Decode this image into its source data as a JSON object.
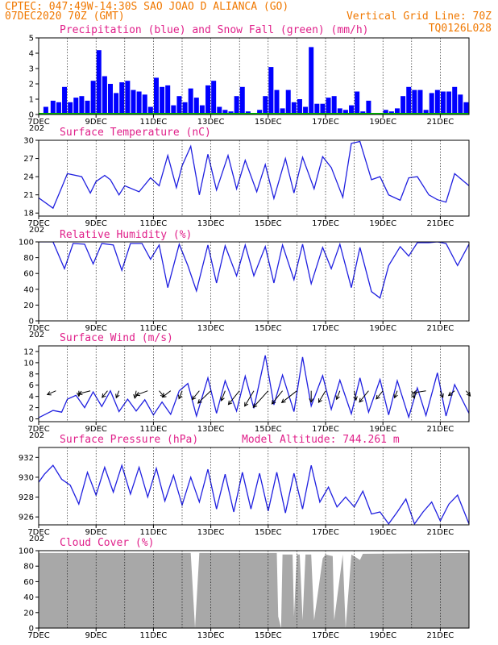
{
  "header": {
    "line1": "CPTEC:   047:49W-14:30S  SAO JOAO D ALIANCA (GO)",
    "line2_left": "07DEC2020 70Z (GMT)",
    "line2_right": "Vertical Grid Line: 70Z",
    "code": "TQ0126L028"
  },
  "x_ticks": [
    "7DEC",
    "9DEC",
    "11DEC",
    "13DEC",
    "15DEC",
    "17DEC",
    "19DEC",
    "21DEC"
  ],
  "year_fragment": "202",
  "colors": {
    "header": "#f07800",
    "panel_title": "#e0208a",
    "precip": "#0000ff",
    "snow": "#00c000",
    "line": "#2020e0",
    "cloud": "#a8a8a8"
  },
  "chart_data": [
    {
      "type": "bar",
      "title": "Precipitation (blue) and Snow Fall (green) (mm/h)",
      "ylim": [
        0,
        5
      ],
      "yticks": [
        "0",
        "1",
        "2",
        "3",
        "4",
        "5"
      ],
      "x_start_day": 7,
      "x_end_day": 22,
      "series": [
        {
          "name": "Precipitation",
          "color": "#0000ff",
          "x": [
            7.25,
            7.5,
            7.7,
            7.9,
            8.1,
            8.3,
            8.5,
            8.7,
            8.9,
            9.1,
            9.3,
            9.5,
            9.7,
            9.9,
            10.1,
            10.3,
            10.5,
            10.7,
            10.9,
            11.1,
            11.3,
            11.5,
            11.7,
            11.9,
            12.1,
            12.3,
            12.5,
            12.7,
            12.9,
            13.1,
            13.3,
            13.5,
            13.7,
            13.9,
            14.1,
            14.3,
            14.5,
            14.7,
            14.9,
            15.1,
            15.3,
            15.5,
            15.7,
            15.9,
            16.1,
            16.3,
            16.5,
            16.7,
            16.9,
            17.1,
            17.3,
            17.5,
            17.7,
            17.9,
            18.1,
            18.3,
            18.5,
            19.1,
            19.3,
            19.5,
            19.7,
            19.9,
            20.1,
            20.3,
            20.5,
            20.7,
            20.9,
            21.1,
            21.3,
            21.5,
            21.7,
            21.9
          ],
          "values": [
            0.5,
            0.9,
            0.8,
            1.8,
            0.8,
            1.1,
            1.2,
            0.9,
            2.2,
            4.2,
            2.5,
            2.0,
            1.4,
            2.1,
            2.2,
            1.6,
            1.5,
            1.3,
            0.5,
            2.4,
            1.8,
            1.9,
            0.6,
            1.2,
            0.8,
            1.7,
            1.1,
            0.6,
            1.9,
            2.2,
            0.5,
            0.3,
            0.2,
            1.2,
            1.8,
            0.2,
            0.1,
            0.3,
            1.2,
            3.1,
            1.6,
            0.4,
            1.6,
            0.8,
            1.0,
            0.5,
            4.4,
            0.7,
            0.7,
            1.1,
            1.2,
            0.4,
            0.3,
            0.6,
            1.5,
            0.2,
            0.9,
            0.3,
            0.2,
            0.4,
            1.2,
            1.8,
            1.6,
            1.6,
            0.3,
            1.4,
            1.6,
            1.5,
            1.5,
            1.8,
            1.3,
            0.8
          ]
        },
        {
          "name": "Snow Fall",
          "color": "#00c000",
          "values": [
            0
          ]
        }
      ]
    },
    {
      "type": "line",
      "title": "Surface Temperature (nC)",
      "ylim": [
        17.5,
        30
      ],
      "yticks": [
        "18",
        "21",
        "24",
        "27",
        "30"
      ],
      "x": [
        7.0,
        7.5,
        7.8,
        8.0,
        8.5,
        8.8,
        9.0,
        9.3,
        9.5,
        9.8,
        10.0,
        10.5,
        10.9,
        11.2,
        11.5,
        11.8,
        12.0,
        12.3,
        12.6,
        12.9,
        13.2,
        13.6,
        13.9,
        14.2,
        14.6,
        14.9,
        15.2,
        15.6,
        15.9,
        16.2,
        16.6,
        16.9,
        17.2,
        17.6,
        17.9,
        18.2,
        18.6,
        18.9,
        19.2,
        19.6,
        19.9,
        20.2,
        20.6,
        20.9,
        21.2,
        21.5,
        21.8,
        22.0
      ],
      "values": [
        20.5,
        18.8,
        22.2,
        24.5,
        24.0,
        21.3,
        23.2,
        24.2,
        23.5,
        21.0,
        22.5,
        21.5,
        23.8,
        22.5,
        27.5,
        22.2,
        25.8,
        29.0,
        21.0,
        27.7,
        21.8,
        27.5,
        22.0,
        26.7,
        21.5,
        26.0,
        20.4,
        27.0,
        21.3,
        27.2,
        22.0,
        27.3,
        25.5,
        20.6,
        29.5,
        29.8,
        23.5,
        24.0,
        21.0,
        20.1,
        23.8,
        24.0,
        21.0,
        20.2,
        19.8,
        24.5,
        23.3,
        22.5
      ]
    },
    {
      "type": "line",
      "title": "Relative Humidity (%)",
      "ylim": [
        0,
        100
      ],
      "yticks": [
        "0",
        "20",
        "40",
        "60",
        "80",
        "100"
      ],
      "x": [
        7.0,
        7.5,
        7.9,
        8.2,
        8.6,
        8.9,
        9.2,
        9.6,
        9.9,
        10.2,
        10.6,
        10.9,
        11.2,
        11.5,
        11.9,
        12.2,
        12.5,
        12.9,
        13.2,
        13.5,
        13.9,
        14.2,
        14.5,
        14.9,
        15.2,
        15.5,
        15.9,
        16.2,
        16.5,
        16.9,
        17.2,
        17.5,
        17.9,
        18.2,
        18.6,
        18.9,
        19.2,
        19.6,
        19.9,
        20.2,
        20.6,
        20.9,
        21.2,
        21.6,
        22.0
      ],
      "values": [
        100,
        100,
        66,
        98,
        97,
        72,
        98,
        96,
        64,
        98,
        98,
        78,
        96,
        42,
        97,
        70,
        38,
        96,
        48,
        95,
        57,
        96,
        57,
        94,
        48,
        96,
        52,
        97,
        47,
        93,
        66,
        97,
        42,
        93,
        37,
        29,
        70,
        94,
        82,
        99,
        99,
        100,
        98,
        70,
        97
      ]
    },
    {
      "type": "line",
      "title": "Surface Wind (m/s)",
      "ylim": [
        -0.5,
        13
      ],
      "yticks": [
        "0",
        "2",
        "4",
        "6",
        "8",
        "10",
        "12"
      ],
      "x": [
        7.0,
        7.5,
        7.8,
        8.0,
        8.3,
        8.6,
        8.9,
        9.2,
        9.5,
        9.8,
        10.1,
        10.4,
        10.7,
        11.0,
        11.3,
        11.6,
        11.9,
        12.2,
        12.5,
        12.9,
        13.2,
        13.5,
        13.9,
        14.2,
        14.5,
        14.9,
        15.2,
        15.5,
        15.9,
        16.2,
        16.5,
        16.9,
        17.2,
        17.5,
        17.9,
        18.2,
        18.5,
        18.9,
        19.2,
        19.5,
        19.9,
        20.2,
        20.5,
        20.9,
        21.2,
        21.5,
        22.0
      ],
      "values": [
        0.2,
        1.5,
        1.2,
        3.5,
        4.2,
        2.0,
        4.8,
        2.2,
        5.0,
        1.3,
        3.5,
        1.4,
        3.4,
        0.7,
        3.0,
        0.8,
        5.0,
        6.3,
        0.5,
        7.3,
        1.0,
        6.8,
        1.4,
        7.6,
        1.9,
        11.3,
        2.5,
        7.8,
        1.3,
        11.0,
        2.3,
        7.7,
        1.7,
        6.9,
        0.9,
        7.3,
        1.2,
        7.0,
        0.7,
        6.8,
        0.3,
        5.5,
        0.6,
        8.2,
        0.5,
        6.1,
        1.0
      ],
      "arrows": [
        {
          "x": 7.6,
          "speed": 1,
          "dir": 45
        },
        {
          "x": 8.4,
          "speed": 1,
          "dir": 90
        },
        {
          "x": 8.8,
          "speed": 1.2,
          "dir": 30
        },
        {
          "x": 9.4,
          "speed": 1.5,
          "dir": 70
        },
        {
          "x": 9.8,
          "speed": 1.5,
          "dir": 80
        },
        {
          "x": 10.4,
          "speed": 1.6,
          "dir": 85
        },
        {
          "x": 10.8,
          "speed": 1.4,
          "dir": 40
        },
        {
          "x": 11.2,
          "speed": 1.3,
          "dir": 110
        },
        {
          "x": 11.6,
          "speed": 1.6,
          "dir": 60
        },
        {
          "x": 12.0,
          "speed": 1.8,
          "dir": 80
        },
        {
          "x": 12.6,
          "speed": 2.2,
          "dir": 70
        },
        {
          "x": 13.0,
          "speed": 3.5,
          "dir": 65
        },
        {
          "x": 13.5,
          "speed": 2.4,
          "dir": 80
        },
        {
          "x": 14.0,
          "speed": 3.8,
          "dir": 70
        },
        {
          "x": 14.5,
          "speed": 4.2,
          "dir": 75
        },
        {
          "x": 15.0,
          "speed": 4.8,
          "dir": 68
        },
        {
          "x": 15.5,
          "speed": 3.6,
          "dir": 70
        },
        {
          "x": 16.0,
          "speed": 3.5,
          "dir": 60
        },
        {
          "x": 16.5,
          "speed": 2.8,
          "dir": 90
        },
        {
          "x": 17.0,
          "speed": 3.0,
          "dir": 75
        },
        {
          "x": 17.5,
          "speed": 2.0,
          "dir": 80
        },
        {
          "x": 18.0,
          "speed": 2.2,
          "dir": 95
        },
        {
          "x": 18.5,
          "speed": 3.0,
          "dir": 70
        },
        {
          "x": 19.0,
          "speed": 2.0,
          "dir": 70
        },
        {
          "x": 19.5,
          "speed": 1.5,
          "dir": 80
        },
        {
          "x": 20.0,
          "speed": 1.6,
          "dir": 100
        },
        {
          "x": 20.5,
          "speed": 1.2,
          "dir": 20
        },
        {
          "x": 21.0,
          "speed": 1.4,
          "dir": 100
        },
        {
          "x": 21.5,
          "speed": 1.0,
          "dir": 60
        },
        {
          "x": 21.9,
          "speed": 1.0,
          "dir": 110
        }
      ]
    },
    {
      "type": "line",
      "title": "Surface Pressure (hPa)",
      "altitude_label": "Model Altitude: 744.261 m",
      "ylim": [
        925.2,
        933
      ],
      "yticks": [
        "926",
        "928",
        "930",
        "932"
      ],
      "x": [
        7.0,
        7.2,
        7.5,
        7.8,
        8.1,
        8.4,
        8.7,
        9.0,
        9.3,
        9.6,
        9.9,
        10.2,
        10.5,
        10.8,
        11.1,
        11.4,
        11.7,
        12.0,
        12.3,
        12.6,
        12.9,
        13.2,
        13.5,
        13.8,
        14.1,
        14.4,
        14.7,
        15.0,
        15.3,
        15.6,
        15.9,
        16.2,
        16.5,
        16.8,
        17.1,
        17.4,
        17.7,
        18.0,
        18.3,
        18.6,
        18.9,
        19.2,
        19.5,
        19.8,
        20.1,
        20.4,
        20.7,
        21.0,
        21.3,
        21.6,
        22.0
      ],
      "values": [
        929.5,
        930.3,
        931.2,
        929.8,
        929.2,
        927.3,
        930.5,
        928.2,
        931.0,
        928.5,
        931.2,
        928.3,
        931.0,
        928.0,
        930.9,
        927.6,
        930.2,
        927.2,
        930.0,
        927.5,
        930.8,
        926.8,
        930.3,
        926.5,
        930.5,
        926.8,
        930.4,
        926.6,
        930.5,
        926.4,
        930.4,
        926.8,
        931.2,
        927.5,
        929.0,
        927.0,
        928.0,
        927.0,
        928.6,
        926.3,
        926.5,
        925.3,
        926.5,
        927.8,
        925.3,
        926.5,
        927.5,
        925.6,
        927.3,
        928.2,
        925.3
      ]
    },
    {
      "type": "area",
      "title": "Cloud Cover (%)",
      "ylim": [
        0,
        100
      ],
      "yticks": [
        "0",
        "20",
        "40",
        "60",
        "80",
        "100"
      ],
      "x": [
        7.0,
        12.3,
        12.45,
        12.6,
        15.3,
        15.35,
        15.45,
        15.5,
        15.85,
        15.9,
        16.0,
        16.1,
        16.2,
        16.3,
        16.5,
        16.6,
        16.9,
        17.0,
        17.25,
        17.3,
        17.6,
        17.7,
        17.9,
        18.2,
        18.3,
        22.0
      ],
      "values": [
        97,
        97,
        0,
        97,
        97,
        15,
        0,
        95,
        95,
        15,
        95,
        95,
        10,
        95,
        95,
        10,
        90,
        95,
        93,
        10,
        95,
        0,
        95,
        88,
        96,
        97
      ]
    }
  ]
}
